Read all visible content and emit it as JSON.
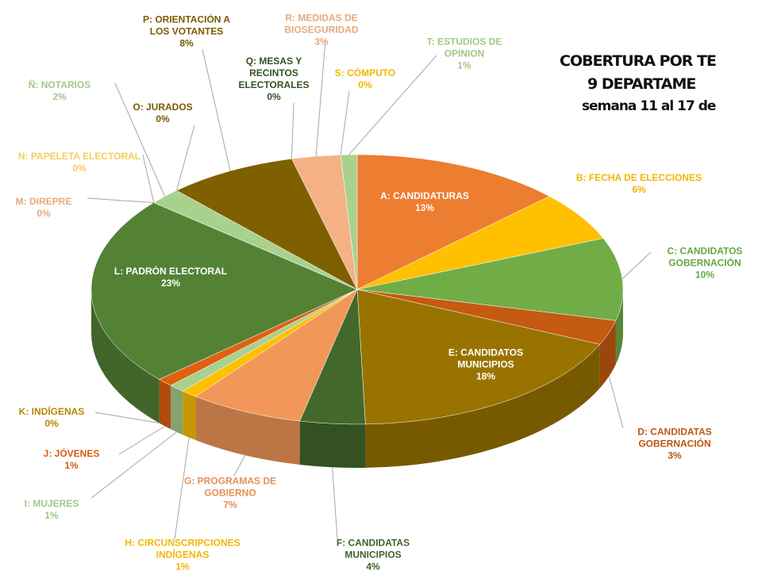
{
  "chart_data": {
    "type": "pie3d",
    "title_lines": [
      "COBERTURA POR TE",
      "9 DEPARTAME",
      "semana 11 al 17 de"
    ],
    "categories": [
      "A: CANDIDATURAS",
      "B: FECHA DE ELECCIONES",
      "C: CANDIDATOS GOBERNACIÓN",
      "D: CANDIDATAS GOBERNACIÓN",
      "E: CANDIDATOS MUNICIPIOS",
      "F: CANDIDATAS MUNICIPIOS",
      "G: PROGRAMAS DE GOBIERNO",
      "H: CIRCUNSCRIPCIONES INDÍGENAS",
      "I: MUJERES",
      "J: JÓVENES",
      "K: INDÍGENAS",
      "L: PADRÓN ELECTORAL",
      "M: DIREPRE",
      "N: PAPELETA ELECTORAL",
      "Ñ: NOTARIOS",
      "O: JURADOS",
      "P: ORIENTACIÓN A LOS VOTANTES",
      "Q: MESAS Y RECINTOS ELECTORALES",
      "R: MEDIDAS DE BIOSEGURIDAD",
      "S: CÓMPUTO",
      "T: ESTUDIOS DE OPINION"
    ],
    "values": [
      13,
      6,
      10,
      3,
      18,
      4,
      7,
      1,
      1,
      1,
      0,
      23,
      0,
      0,
      2,
      0,
      8,
      0,
      3,
      0,
      1
    ],
    "value_labels": [
      "13%",
      "6%",
      "10%",
      "3%",
      "18%",
      "4%",
      "7%",
      "1%",
      "1%",
      "1%",
      "0%",
      "23%",
      "0%",
      "0%",
      "2%",
      "0%",
      "8%",
      "0%",
      "3%",
      "0%",
      "1%"
    ],
    "colors": [
      "#ed7d31",
      "#ffc000",
      "#70ad47",
      "#c55a11",
      "#997300",
      "#43682b",
      "#f1975a",
      "#ffc000",
      "#a9d18e",
      "#e06010",
      "#bf9000",
      "#548235",
      "#f4b183",
      "#ffd966",
      "#a9d18e",
      "#7f6000",
      "#7f6000",
      "#375623",
      "#f4b183",
      "#ffc000",
      "#a9d18e"
    ]
  }
}
